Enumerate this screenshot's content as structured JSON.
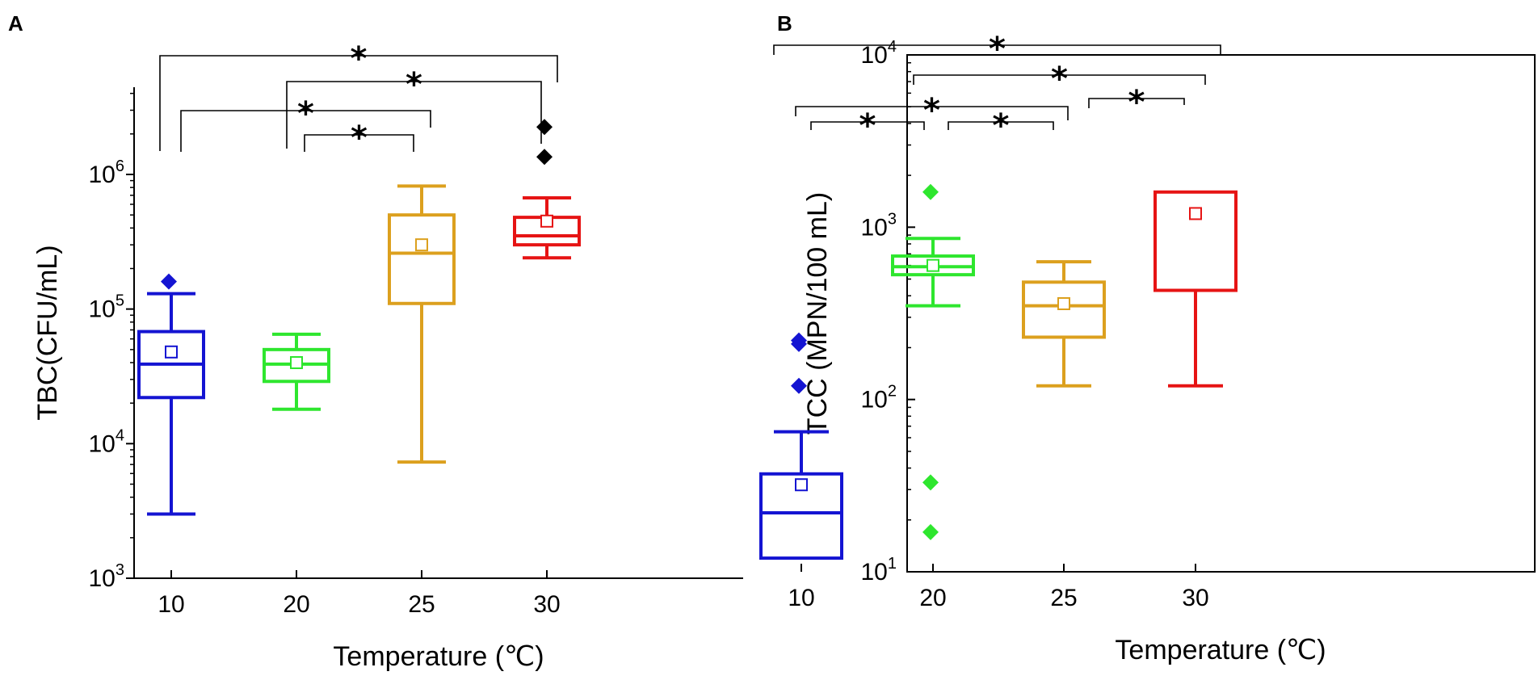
{
  "chart_data": [
    {
      "panel": "A",
      "type": "box",
      "scale": "log",
      "ylim": [
        1000,
        5000000
      ],
      "ylabel": "TBC(CFU/mL)",
      "xlabel": "Temperature (℃)",
      "categories": [
        "10",
        "20",
        "25",
        "30"
      ],
      "yticks": [
        {
          "base": "10",
          "exp": "3",
          "value": 1000
        },
        {
          "base": "10",
          "exp": "4",
          "value": 10000
        },
        {
          "base": "10",
          "exp": "5",
          "value": 100000
        },
        {
          "base": "10",
          "exp": "6",
          "value": 1000000
        }
      ],
      "boxes": [
        {
          "category": "10",
          "color": "#1414d2",
          "whisker_low": 3000,
          "q1": 22000,
          "median": 39000,
          "q3": 68000,
          "whisker_high": 130000,
          "mean": 48000,
          "outliers": [
            160000
          ]
        },
        {
          "category": "20",
          "color": "#2ee62e",
          "whisker_low": 18000,
          "q1": 29000,
          "median": 39000,
          "q3": 50000,
          "whisker_high": 65000,
          "mean": 40000,
          "outliers": []
        },
        {
          "category": "25",
          "color": "#dca01e",
          "whisker_low": 7300,
          "q1": 110000,
          "median": 260000,
          "q3": 500000,
          "whisker_high": 820000,
          "mean": 300000,
          "outliers": []
        },
        {
          "category": "30",
          "color": "#e61414",
          "whisker_low": 240000,
          "q1": 300000,
          "median": 350000,
          "q3": 480000,
          "whisker_high": 670000,
          "mean": 450000,
          "outliers": [
            1350000,
            2250000
          ],
          "outlier_color": "#000000"
        }
      ],
      "significance": [
        {
          "from": "20",
          "to": "25",
          "label": "*"
        },
        {
          "from": "10",
          "to": "25",
          "label": "*"
        },
        {
          "from": "20",
          "to": "30",
          "label": "*"
        },
        {
          "from": "10",
          "to": "30",
          "label": "*"
        }
      ]
    },
    {
      "panel": "B",
      "type": "box",
      "scale": "log",
      "ylim": [
        10,
        10000
      ],
      "ylabel": "TCC (MPN/100 mL)",
      "xlabel": "Temperature (℃)",
      "categories": [
        "10",
        "20",
        "25",
        "30"
      ],
      "yticks": [
        {
          "base": "10",
          "exp": "1",
          "value": 10
        },
        {
          "base": "10",
          "exp": "2",
          "value": 100
        },
        {
          "base": "10",
          "exp": "3",
          "value": 1000
        },
        {
          "base": "10",
          "exp": "4",
          "value": 10000
        }
      ],
      "boxes": [
        {
          "category": "10",
          "color": "#1414d2",
          "whisker_low": null,
          "q1": 12,
          "median": 22,
          "q3": 37,
          "whisker_high": 65,
          "mean": 32,
          "outliers": [
            120,
            210,
            220
          ]
        },
        {
          "category": "20",
          "color": "#2ee62e",
          "whisker_low": 350,
          "q1": 530,
          "median": 590,
          "q3": 680,
          "whisker_high": 860,
          "mean": 600,
          "outliers": [
            17,
            33,
            1600
          ]
        },
        {
          "category": "25",
          "color": "#dca01e",
          "whisker_low": 120,
          "q1": 230,
          "median": 350,
          "q3": 480,
          "whisker_high": 630,
          "mean": 360,
          "outliers": []
        },
        {
          "category": "30",
          "color": "#e61414",
          "whisker_low": 120,
          "q1": 430,
          "median": null,
          "q3": 1600,
          "whisker_high": null,
          "mean": 1200,
          "outliers": []
        }
      ],
      "significance": [
        {
          "from": "10",
          "to": "20",
          "label": "*"
        },
        {
          "from": "20",
          "to": "25",
          "label": "*"
        },
        {
          "from": "10",
          "to": "25",
          "label": "*"
        },
        {
          "from": "25",
          "to": "30",
          "label": "*"
        },
        {
          "from": "20",
          "to": "30",
          "label": "*"
        },
        {
          "from": "10",
          "to": "30",
          "label": "*"
        }
      ]
    }
  ]
}
